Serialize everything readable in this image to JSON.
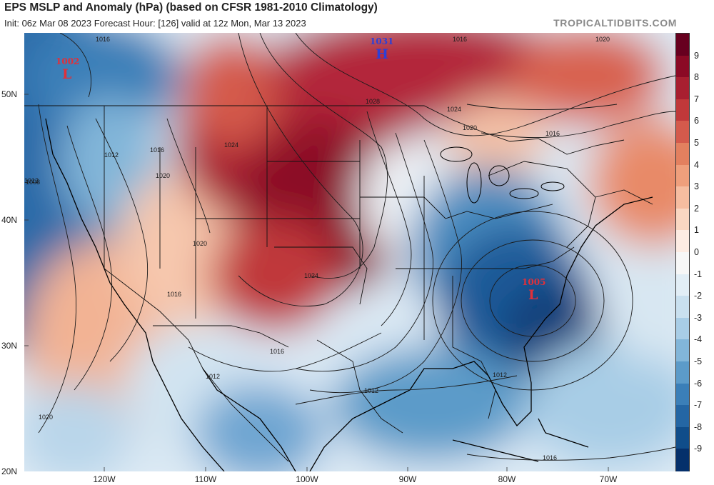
{
  "header": {
    "title": "EPS MSLP and Anomaly (hPa) (based on CFSR 1981-2010 Climatology)",
    "subtitle": "Init: 06z Mar 08 2023   Forecast Hour: [126]   valid at 12z Mon, Mar 13 2023",
    "brand": "TROPICALTIDBITS.COM"
  },
  "colorbar": {
    "labels": [
      "9",
      "8",
      "7",
      "6",
      "5",
      "4",
      "3",
      "2",
      "1",
      "0",
      "-1",
      "-2",
      "-3",
      "-4",
      "-5",
      "-6",
      "-7",
      "-8",
      "-9"
    ],
    "colors": [
      "#67001f",
      "#8b0a25",
      "#a81f30",
      "#c0383a",
      "#d45a4c",
      "#e3805f",
      "#ef9f7c",
      "#f6bda0",
      "#fad7c2",
      "#fdece3",
      "#f7f7f7",
      "#e2eef6",
      "#c9e0ef",
      "#a8cde6",
      "#82b6d9",
      "#5c9bc9",
      "#3b7fb8",
      "#2466a4",
      "#104d8a",
      "#05306b"
    ]
  },
  "map": {
    "lat_labels": [
      "50N",
      "40N",
      "30N",
      "20N"
    ],
    "lon_labels": [
      "120W",
      "110W",
      "100W",
      "90W",
      "80W",
      "70W"
    ],
    "pressure_centers": [
      {
        "type": "L",
        "value": "1002",
        "color": "#e0303a"
      },
      {
        "type": "H",
        "value": "1031",
        "color": "#2d3fd6"
      },
      {
        "type": "L",
        "value": "1005",
        "color": "#e0303a"
      }
    ],
    "isobar_labels": [
      "1028",
      "1024",
      "1020",
      "1016",
      "1016",
      "1012",
      "1024",
      "1020",
      "1016",
      "1012",
      "1008",
      "1012",
      "1012",
      "1016",
      "1020",
      "1024",
      "1016",
      "1012",
      "1016",
      "1016",
      "1020",
      "1020"
    ]
  }
}
